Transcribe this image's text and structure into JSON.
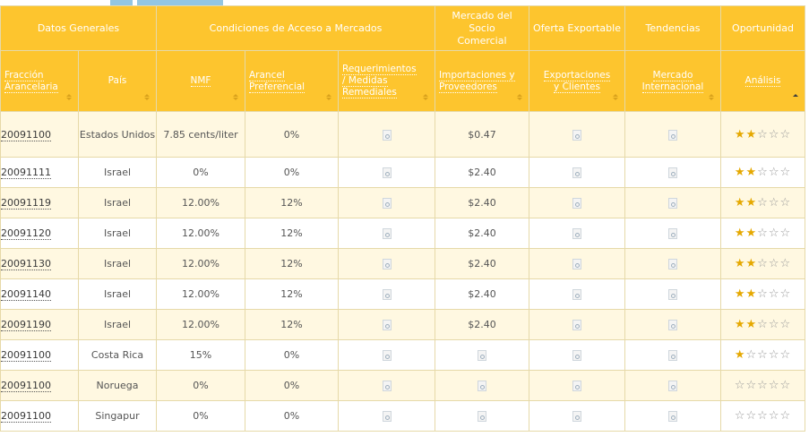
{
  "header": {
    "groups": [
      {
        "id": "datos",
        "label": "Datos Generales"
      },
      {
        "id": "condiciones",
        "label": "Condiciones de Acceso a Mercados"
      },
      {
        "id": "mercado",
        "label": "Mercado del Socio Comercial"
      },
      {
        "id": "oferta",
        "label": "Oferta Exportable"
      },
      {
        "id": "tendencias",
        "label": "Tendencias"
      },
      {
        "id": "oportunidad",
        "label": "Oportunidad"
      }
    ],
    "columns": [
      {
        "id": "fraccion",
        "label": "Fracción Arancelaria"
      },
      {
        "id": "pais",
        "label": "País"
      },
      {
        "id": "nmf",
        "label": "NMF"
      },
      {
        "id": "arancel",
        "label": "Arancel Preferencial"
      },
      {
        "id": "requerimientos",
        "label": "Requerimientos / Medidas Remediales"
      },
      {
        "id": "importaciones",
        "label": "Importaciones y Proveedores"
      },
      {
        "id": "exportaciones",
        "label": "Exportaciones y Clientes"
      },
      {
        "id": "mercado_int",
        "label": "Mercado Internacional"
      },
      {
        "id": "analisis",
        "label": "Análisis"
      }
    ]
  },
  "rows": [
    {
      "fraccion": "20091100",
      "pais": "Estados Unidos",
      "nmf": "7.85 cents/liter",
      "arancel": "0%",
      "importaciones": "$0.47",
      "stars": 2
    },
    {
      "fraccion": "20091111",
      "pais": "Israel",
      "nmf": "0%",
      "arancel": "0%",
      "importaciones": "$2.40",
      "stars": 2
    },
    {
      "fraccion": "20091119",
      "pais": "Israel",
      "nmf": "12.00%",
      "arancel": "12%",
      "importaciones": "$2.40",
      "stars": 2
    },
    {
      "fraccion": "20091120",
      "pais": "Israel",
      "nmf": "12.00%",
      "arancel": "12%",
      "importaciones": "$2.40",
      "stars": 2
    },
    {
      "fraccion": "20091130",
      "pais": "Israel",
      "nmf": "12.00%",
      "arancel": "12%",
      "importaciones": "$2.40",
      "stars": 2
    },
    {
      "fraccion": "20091140",
      "pais": "Israel",
      "nmf": "12.00%",
      "arancel": "12%",
      "importaciones": "$2.40",
      "stars": 2
    },
    {
      "fraccion": "20091190",
      "pais": "Israel",
      "nmf": "12.00%",
      "arancel": "12%",
      "importaciones": "$2.40",
      "stars": 2
    },
    {
      "fraccion": "20091100",
      "pais": "Costa Rica",
      "nmf": "15%",
      "arancel": "0%",
      "importaciones": "",
      "stars": 1
    },
    {
      "fraccion": "20091100",
      "pais": "Noruega",
      "nmf": "0%",
      "arancel": "0%",
      "importaciones": "",
      "stars": 0
    },
    {
      "fraccion": "20091100",
      "pais": "Singapur",
      "nmf": "0%",
      "arancel": "0%",
      "importaciones": "",
      "stars": 0
    }
  ],
  "icons": {
    "document": "document-icon",
    "star": "star-icon",
    "sort": "sort-icon"
  },
  "colors": {
    "header_bg": "#fdc52e",
    "row_alt": "#fff8e1",
    "star_on": "#e5a800",
    "top_buttons": "#93c6e2"
  }
}
